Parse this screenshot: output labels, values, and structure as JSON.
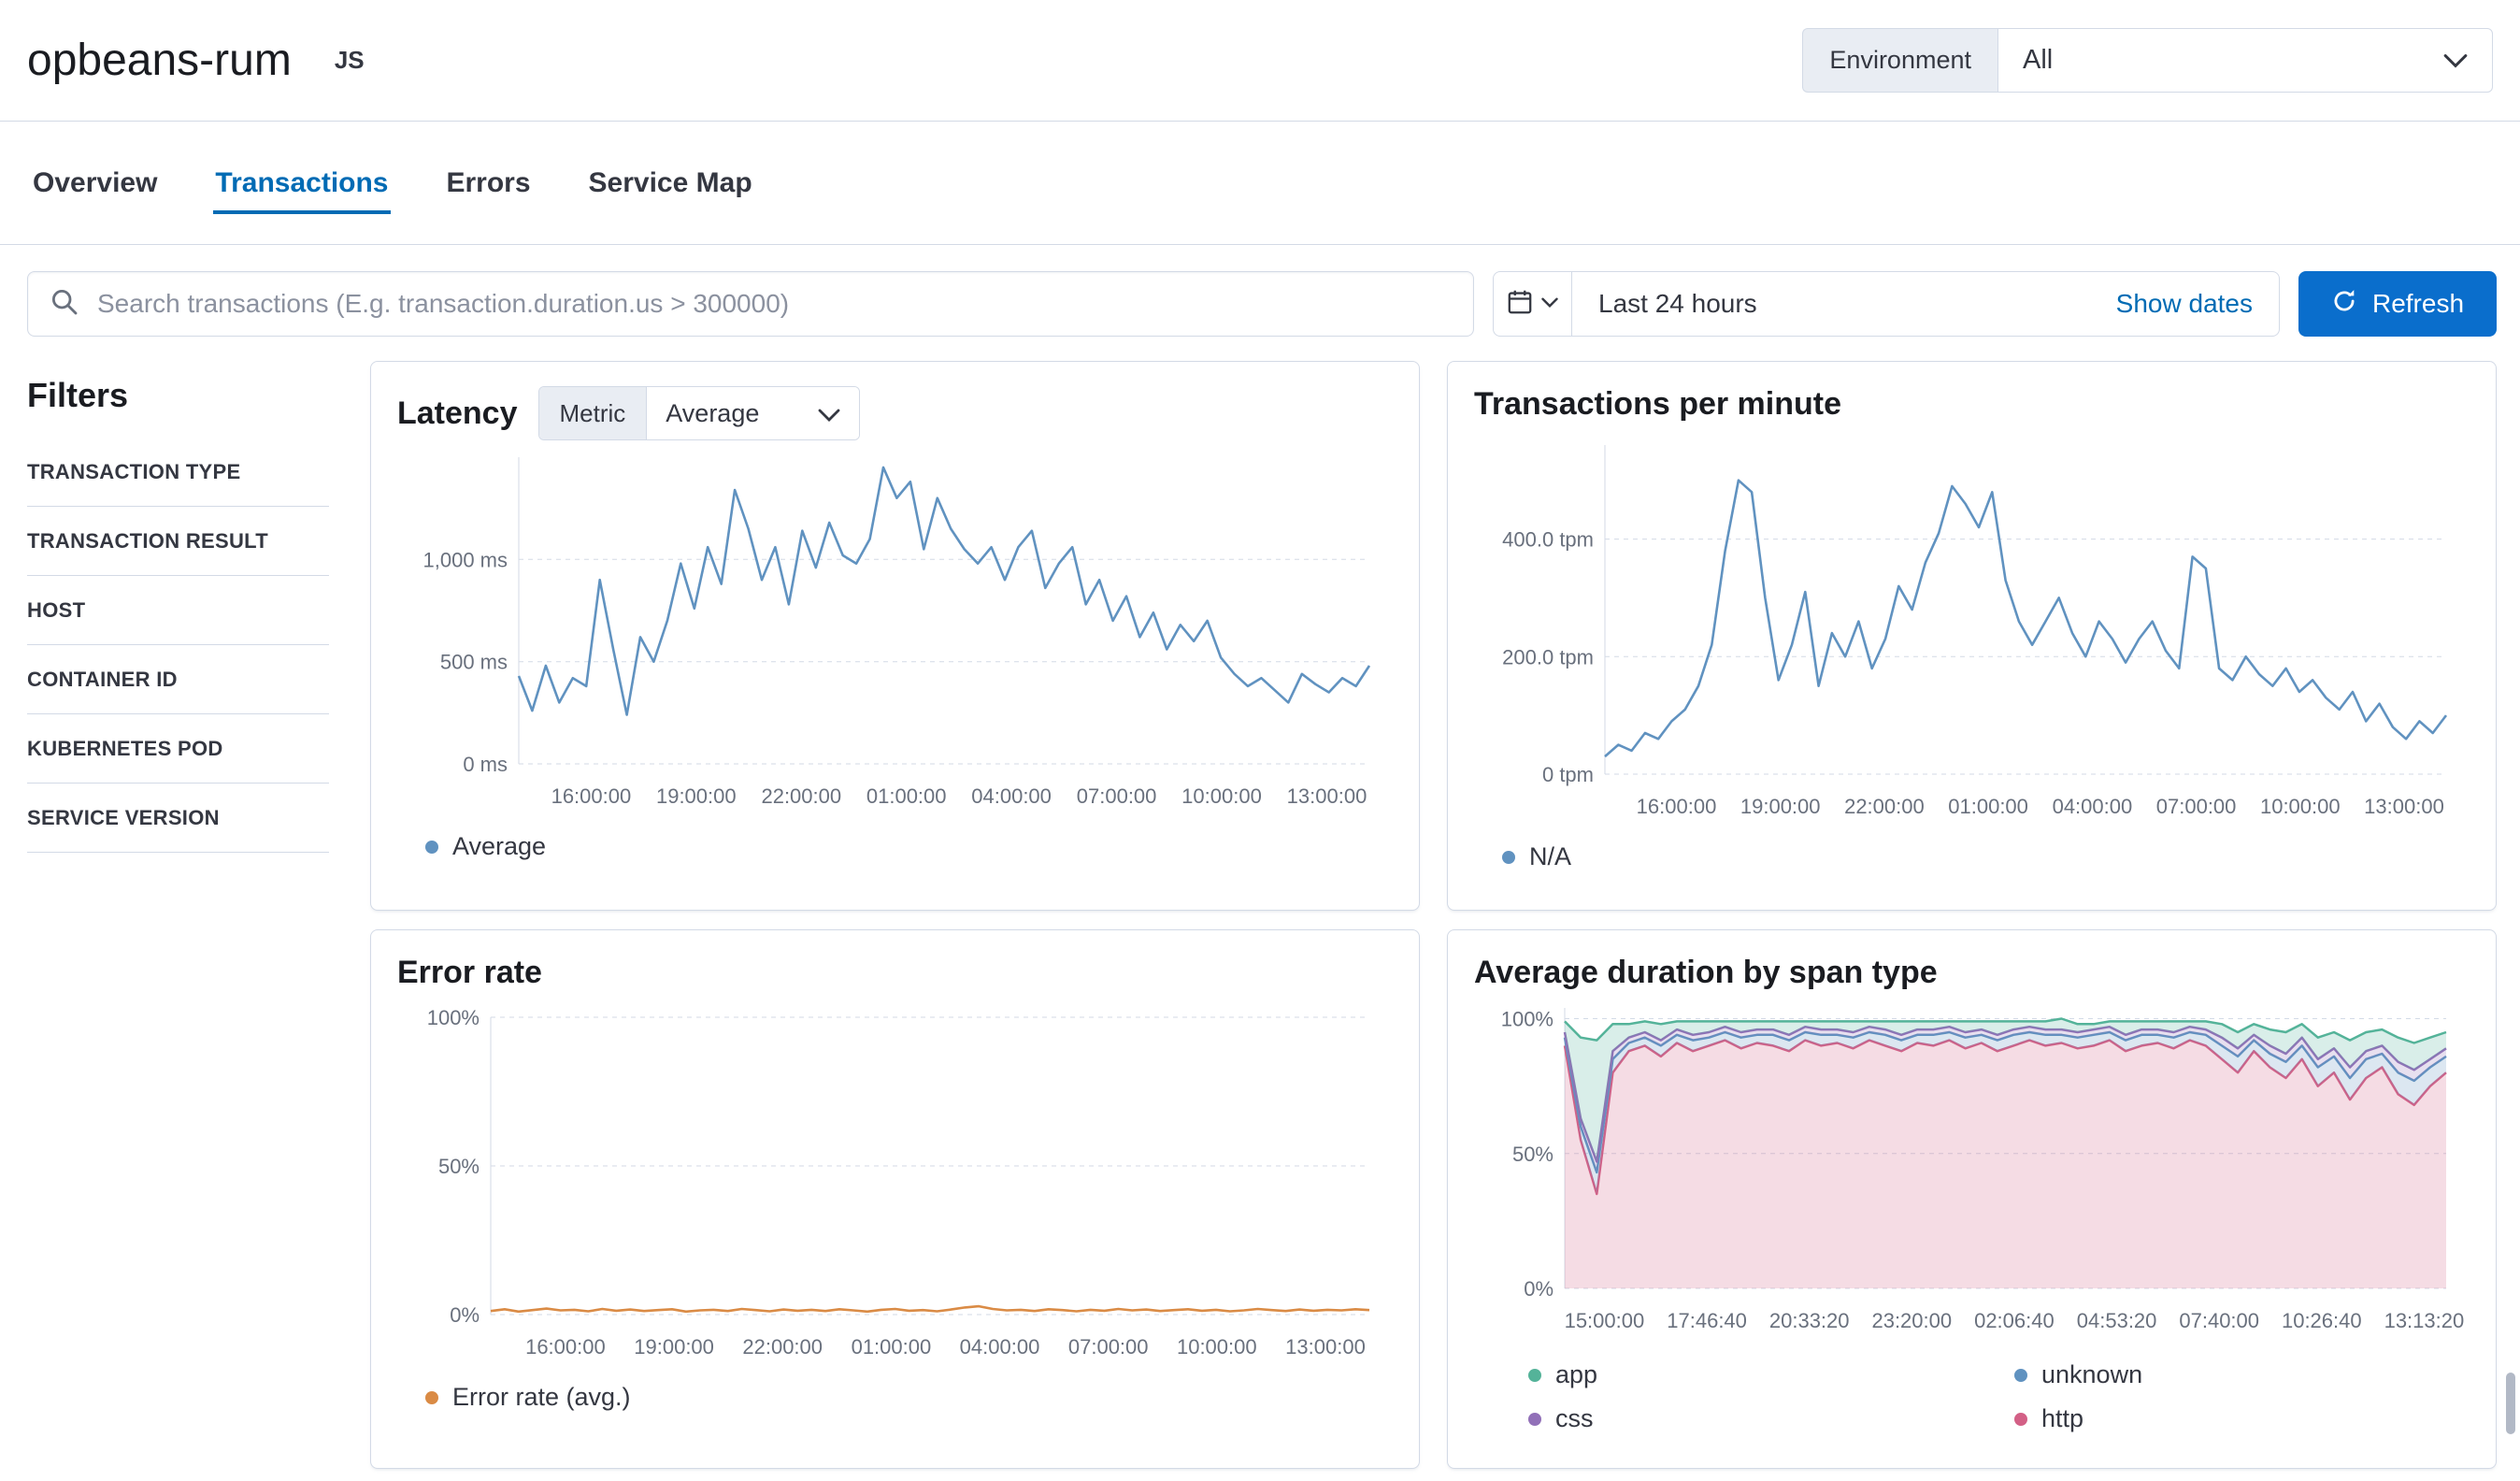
{
  "colors": {
    "accent": "#006BB4",
    "refresh_button": "#0A6ECC"
  },
  "header": {
    "title": "opbeans-rum",
    "agent_badge": "JS",
    "environment_label": "Environment",
    "environment_value": "All"
  },
  "tabs": [
    {
      "label": "Overview"
    },
    {
      "label": "Transactions"
    },
    {
      "label": "Errors"
    },
    {
      "label": "Service Map"
    }
  ],
  "search": {
    "placeholder": "Search transactions (E.g. transaction.duration.us > 300000)"
  },
  "datepicker": {
    "quick_value": "Last 24 hours",
    "show_dates_label": "Show dates",
    "refresh_label": "Refresh"
  },
  "filters": {
    "title": "Filters",
    "items": [
      "TRANSACTION TYPE",
      "TRANSACTION RESULT",
      "HOST",
      "CONTAINER ID",
      "KUBERNETES POD",
      "SERVICE VERSION"
    ]
  },
  "chart_data": [
    {
      "type": "line",
      "title": "Latency",
      "metric_label": "Metric",
      "metric_value": "Average",
      "ylim": [
        0,
        1500
      ],
      "y_ticks": [
        {
          "v": 0,
          "label": "0 ms"
        },
        {
          "v": 500,
          "label": "500 ms"
        },
        {
          "v": 1000,
          "label": "1,000 ms"
        }
      ],
      "x_ticks": [
        "16:00:00",
        "19:00:00",
        "22:00:00",
        "01:00:00",
        "04:00:00",
        "07:00:00",
        "10:00:00",
        "13:00:00"
      ],
      "x_start": 0.085,
      "x_end": 0.95,
      "series": [
        {
          "name": "Average",
          "color": "#6092C0",
          "values": [
            430,
            260,
            480,
            300,
            420,
            380,
            900,
            560,
            240,
            620,
            500,
            700,
            980,
            760,
            1060,
            880,
            1340,
            1150,
            900,
            1060,
            780,
            1140,
            960,
            1180,
            1020,
            980,
            1100,
            1450,
            1300,
            1380,
            1050,
            1300,
            1150,
            1050,
            980,
            1060,
            900,
            1060,
            1140,
            860,
            980,
            1060,
            780,
            900,
            700,
            820,
            620,
            740,
            560,
            680,
            600,
            700,
            520,
            440,
            380,
            420,
            360,
            300,
            440,
            390,
            350,
            420,
            380,
            480
          ]
        }
      ],
      "legend": [
        {
          "label": "Average",
          "color": "#6092C0"
        }
      ]
    },
    {
      "type": "line",
      "title": "Transactions per minute",
      "ylim": [
        0,
        560
      ],
      "y_ticks": [
        {
          "v": 0,
          "label": "0 tpm"
        },
        {
          "v": 200,
          "label": "200.0 tpm"
        },
        {
          "v": 400,
          "label": "400.0 tpm"
        }
      ],
      "x_ticks": [
        "16:00:00",
        "19:00:00",
        "22:00:00",
        "01:00:00",
        "04:00:00",
        "07:00:00",
        "10:00:00",
        "13:00:00"
      ],
      "x_start": 0.085,
      "x_end": 0.95,
      "series": [
        {
          "name": "N/A",
          "color": "#6092C0",
          "values": [
            30,
            50,
            40,
            70,
            60,
            90,
            110,
            150,
            220,
            380,
            500,
            480,
            300,
            160,
            220,
            310,
            150,
            240,
            200,
            260,
            180,
            230,
            320,
            280,
            360,
            410,
            490,
            460,
            420,
            480,
            330,
            260,
            220,
            260,
            300,
            240,
            200,
            260,
            230,
            190,
            230,
            260,
            210,
            180,
            370,
            350,
            180,
            160,
            200,
            170,
            150,
            180,
            140,
            160,
            130,
            110,
            140,
            90,
            120,
            80,
            60,
            90,
            70,
            100
          ]
        }
      ],
      "legend": [
        {
          "label": "N/A",
          "color": "#6092C0"
        }
      ]
    },
    {
      "type": "line",
      "title": "Error rate",
      "ylim": [
        0,
        100
      ],
      "y_ticks": [
        {
          "v": 0,
          "label": "0%"
        },
        {
          "v": 50,
          "label": "50%"
        },
        {
          "v": 100,
          "label": "100%"
        }
      ],
      "x_ticks": [
        "16:00:00",
        "19:00:00",
        "22:00:00",
        "01:00:00",
        "04:00:00",
        "07:00:00",
        "10:00:00",
        "13:00:00"
      ],
      "x_start": 0.085,
      "x_end": 0.95,
      "series": [
        {
          "name": "Error rate (avg.)",
          "color": "#DA8B45",
          "values": [
            1.2,
            1.8,
            1.0,
            1.5,
            2.0,
            1.4,
            1.6,
            1.1,
            1.9,
            1.3,
            1.7,
            1.2,
            1.5,
            1.8,
            1.0,
            1.4,
            1.6,
            1.2,
            1.9,
            1.5,
            1.1,
            1.7,
            1.3,
            1.6,
            1.2,
            1.8,
            1.4,
            1.0,
            1.6,
            1.9,
            1.3,
            1.5,
            1.1,
            1.7,
            2.4,
            2.8,
            1.9,
            1.4,
            1.6,
            1.2,
            1.8,
            1.5,
            1.1,
            1.6,
            1.3,
            1.9,
            1.4,
            1.7,
            1.2,
            1.5,
            1.8,
            1.3,
            1.6,
            1.1,
            1.4,
            1.9,
            1.5,
            1.2,
            1.7,
            1.3,
            1.6,
            1.4,
            1.8,
            1.5
          ]
        }
      ],
      "legend": [
        {
          "label": "Error rate (avg.)",
          "color": "#DA8B45"
        }
      ]
    },
    {
      "type": "area-stacked",
      "title": "Average duration by span type",
      "ylim": [
        0,
        104
      ],
      "y_ticks": [
        {
          "v": 0,
          "label": "0%"
        },
        {
          "v": 50,
          "label": "50%"
        },
        {
          "v": 100,
          "label": "100%"
        }
      ],
      "x_ticks": [
        "15:00:00",
        "17:46:40",
        "20:33:20",
        "23:20:00",
        "02:06:40",
        "04:53:20",
        "07:40:00",
        "10:26:40",
        "13:13:20"
      ],
      "x_start": 0.045,
      "x_end": 0.975,
      "series": [
        {
          "name": "http",
          "color": "#D36086",
          "values": [
            90,
            55,
            35,
            80,
            88,
            90,
            86,
            91,
            88,
            90,
            92,
            89,
            91,
            90,
            88,
            92,
            90,
            91,
            89,
            92,
            90,
            88,
            91,
            90,
            92,
            89,
            91,
            88,
            90,
            92,
            90,
            91,
            89,
            90,
            92,
            88,
            90,
            91,
            89,
            92,
            90,
            85,
            80,
            88,
            82,
            78,
            85,
            75,
            80,
            70,
            78,
            82,
            72,
            68,
            75,
            80
          ]
        },
        {
          "name": "unknown",
          "color": "#6092C0",
          "values": [
            3,
            5,
            8,
            5,
            3,
            3,
            4,
            3,
            4,
            3,
            3,
            4,
            3,
            4,
            4,
            3,
            4,
            3,
            4,
            3,
            4,
            4,
            3,
            4,
            3,
            4,
            3,
            4,
            4,
            3,
            4,
            3,
            4,
            4,
            3,
            4,
            4,
            3,
            4,
            3,
            4,
            5,
            6,
            4,
            5,
            6,
            5,
            7,
            6,
            8,
            7,
            5,
            8,
            9,
            7,
            6
          ]
        },
        {
          "name": "css",
          "color": "#9170B8",
          "values": [
            2,
            3,
            4,
            3,
            2,
            2,
            2,
            2,
            2,
            2,
            2,
            2,
            2,
            2,
            2,
            2,
            2,
            2,
            2,
            2,
            2,
            2,
            2,
            2,
            2,
            2,
            2,
            2,
            2,
            2,
            2,
            2,
            2,
            2,
            2,
            2,
            2,
            2,
            2,
            2,
            2,
            3,
            3,
            2,
            3,
            3,
            3,
            3,
            3,
            4,
            3,
            3,
            4,
            4,
            3,
            3
          ]
        },
        {
          "name": "app",
          "color": "#54B399",
          "values": [
            4,
            30,
            45,
            10,
            5,
            4,
            6,
            3,
            5,
            4,
            2,
            4,
            3,
            3,
            5,
            2,
            3,
            3,
            4,
            2,
            3,
            5,
            3,
            3,
            2,
            4,
            3,
            5,
            3,
            2,
            3,
            4,
            3,
            2,
            2,
            5,
            3,
            3,
            4,
            2,
            3,
            5,
            6,
            4,
            6,
            8,
            5,
            8,
            6,
            10,
            7,
            6,
            9,
            10,
            8,
            6
          ]
        }
      ],
      "legend": [
        {
          "label": "app",
          "color": "#54B399"
        },
        {
          "label": "unknown",
          "color": "#6092C0"
        },
        {
          "label": "css",
          "color": "#9170B8"
        },
        {
          "label": "http",
          "color": "#D36086"
        }
      ]
    }
  ]
}
